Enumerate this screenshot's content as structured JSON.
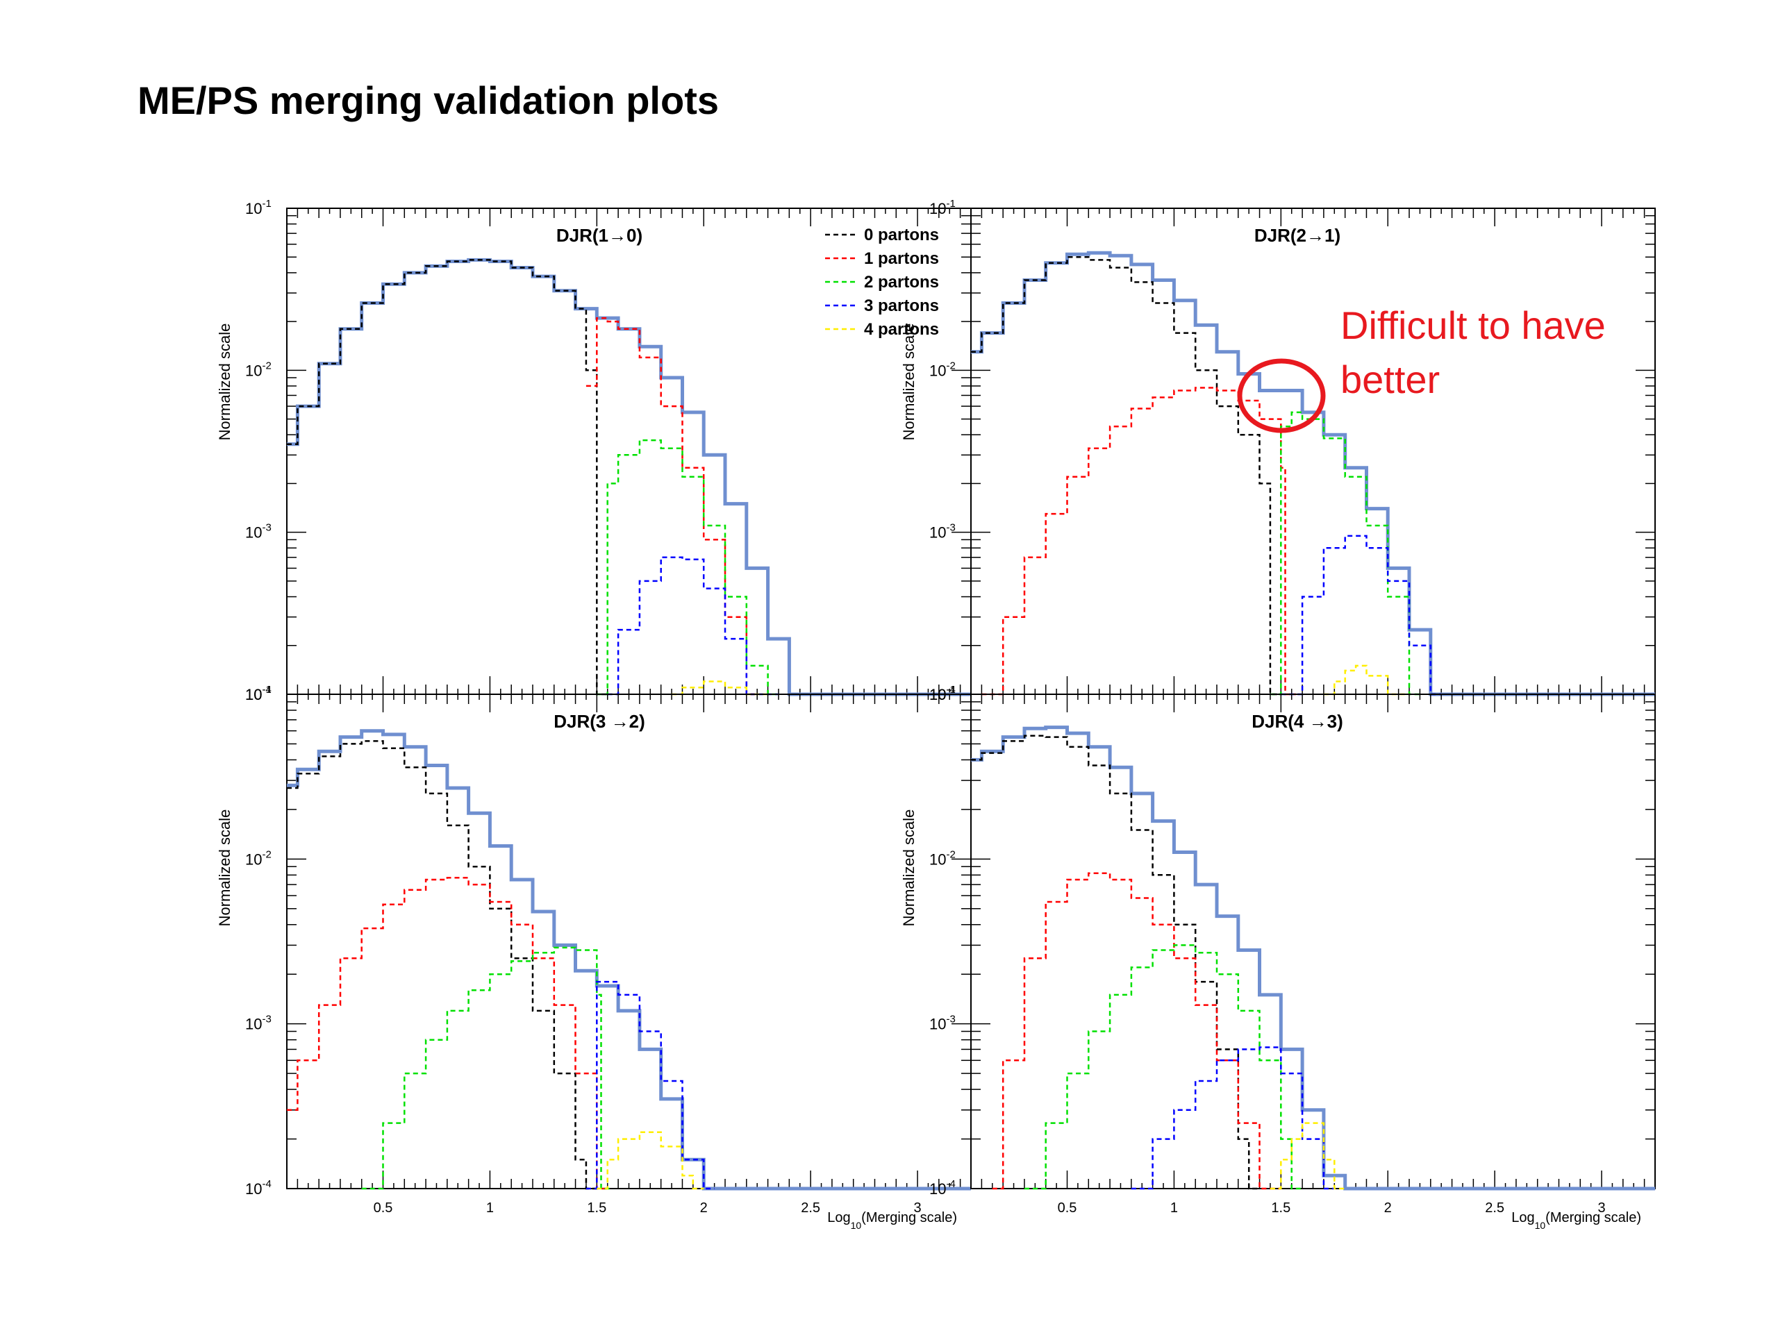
{
  "slide": {
    "title": "ME/PS merging validation plots"
  },
  "annotation": {
    "text": [
      "Difficult to have",
      "better"
    ],
    "color": "#e8191f"
  },
  "colors": {
    "total": "#6f8fd0",
    "0 partons": "#000000",
    "1 partons": "#ff0000",
    "2 partons": "#00e000",
    "3 partons": "#0000ff",
    "4 partons": "#ffee00"
  },
  "chart_data": [
    {
      "type": "line",
      "title": "DJR(1→0)",
      "ylabel": "Normalized scale",
      "xlabel": "",
      "yscale": "log",
      "ylim": [
        0.0001,
        0.1
      ],
      "xlim": [
        0.05,
        3.25
      ],
      "legend": [
        "0 partons",
        "1 partons",
        "2 partons",
        "3 partons",
        "4 partons"
      ],
      "legend_position": "top-right",
      "x_ticks": [
        "0.5",
        "1",
        "1.5",
        "2",
        "2.5",
        "3"
      ],
      "y_ticks": [
        "10^-4",
        "10^-3",
        "10^-2",
        "10^-1"
      ],
      "series": [
        {
          "name": "total",
          "x": [
            0.05,
            0.1,
            0.2,
            0.3,
            0.4,
            0.5,
            0.6,
            0.7,
            0.8,
            0.9,
            1.0,
            1.1,
            1.2,
            1.3,
            1.4,
            1.5,
            1.6,
            1.7,
            1.8,
            1.9,
            2.0,
            2.1,
            2.2,
            2.3,
            2.4,
            2.5,
            3.2
          ],
          "y": [
            0.0035,
            0.006,
            0.011,
            0.018,
            0.026,
            0.034,
            0.04,
            0.044,
            0.047,
            0.048,
            0.047,
            0.043,
            0.038,
            0.031,
            0.024,
            0.021,
            0.018,
            0.014,
            0.009,
            0.0055,
            0.003,
            0.0015,
            0.0006,
            0.00022,
            0.0001,
            0.0001,
            0.0001
          ]
        },
        {
          "name": "0 partons",
          "x": [
            0.05,
            0.1,
            0.2,
            0.3,
            0.4,
            0.5,
            0.6,
            0.7,
            0.8,
            0.9,
            1.0,
            1.1,
            1.2,
            1.3,
            1.4,
            1.45,
            1.5
          ],
          "y": [
            0.0035,
            0.006,
            0.011,
            0.018,
            0.026,
            0.034,
            0.04,
            0.044,
            0.047,
            0.048,
            0.047,
            0.043,
            0.038,
            0.031,
            0.024,
            0.01,
            0.0001
          ]
        },
        {
          "name": "1 partons",
          "x": [
            1.45,
            1.5,
            1.55,
            1.6,
            1.7,
            1.8,
            1.9,
            2.0,
            2.1,
            2.2
          ],
          "y": [
            0.008,
            0.021,
            0.02,
            0.018,
            0.012,
            0.006,
            0.0025,
            0.0009,
            0.0003,
            0.0001
          ]
        },
        {
          "name": "2 partons",
          "x": [
            1.5,
            1.55,
            1.6,
            1.7,
            1.8,
            1.9,
            2.0,
            2.1,
            2.2,
            2.3
          ],
          "y": [
            0.0001,
            0.002,
            0.003,
            0.0037,
            0.0033,
            0.0022,
            0.0011,
            0.0004,
            0.00015,
            0.0001
          ]
        },
        {
          "name": "3 partons",
          "x": [
            1.55,
            1.6,
            1.7,
            1.8,
            1.9,
            2.0,
            2.1,
            2.2,
            2.3
          ],
          "y": [
            0.0001,
            0.00025,
            0.0005,
            0.0007,
            0.00068,
            0.00045,
            0.00022,
            0.0001,
            0.0001
          ]
        },
        {
          "name": "4 partons",
          "x": [
            1.85,
            1.9,
            2.0,
            2.1,
            2.2,
            2.25
          ],
          "y": [
            0.0001,
            0.00011,
            0.00012,
            0.00011,
            0.0001,
            0.0001
          ]
        }
      ]
    },
    {
      "type": "line",
      "title": "DJR(2→1)",
      "ylabel": "Normalized scale",
      "xlabel": "",
      "yscale": "log",
      "ylim": [
        0.0001,
        0.1
      ],
      "xlim": [
        0.05,
        3.25
      ],
      "x_ticks": [
        "0.5",
        "1",
        "1.5",
        "2",
        "2.5",
        "3"
      ],
      "y_ticks": [
        "10^-4",
        "10^-3",
        "10^-2",
        "10^-1"
      ],
      "series": [
        {
          "name": "total",
          "x": [
            0.05,
            0.1,
            0.2,
            0.3,
            0.4,
            0.5,
            0.6,
            0.7,
            0.8,
            0.9,
            1.0,
            1.1,
            1.2,
            1.3,
            1.4,
            1.5,
            1.6,
            1.7,
            1.8,
            1.9,
            2.0,
            2.1,
            2.2,
            2.3,
            3.2
          ],
          "y": [
            0.013,
            0.017,
            0.026,
            0.036,
            0.046,
            0.052,
            0.053,
            0.051,
            0.045,
            0.036,
            0.027,
            0.019,
            0.013,
            0.0095,
            0.0075,
            0.0075,
            0.0055,
            0.004,
            0.0025,
            0.0014,
            0.0006,
            0.00025,
            0.0001,
            0.0001,
            0.0001
          ]
        },
        {
          "name": "0 partons",
          "x": [
            0.05,
            0.1,
            0.2,
            0.3,
            0.4,
            0.5,
            0.6,
            0.7,
            0.8,
            0.9,
            1.0,
            1.1,
            1.2,
            1.3,
            1.4,
            1.45
          ],
          "y": [
            0.013,
            0.017,
            0.026,
            0.036,
            0.046,
            0.05,
            0.048,
            0.043,
            0.035,
            0.026,
            0.017,
            0.01,
            0.006,
            0.004,
            0.002,
            0.0001
          ]
        },
        {
          "name": "1 partons",
          "x": [
            0.1,
            0.2,
            0.3,
            0.4,
            0.5,
            0.6,
            0.7,
            0.8,
            0.9,
            1.0,
            1.1,
            1.2,
            1.3,
            1.4,
            1.5,
            1.52
          ],
          "y": [
            0.0001,
            0.0003,
            0.0007,
            0.0013,
            0.0022,
            0.0033,
            0.0045,
            0.0058,
            0.0068,
            0.0075,
            0.0078,
            0.0075,
            0.0065,
            0.005,
            0.0025,
            0.0001
          ]
        },
        {
          "name": "2 partons",
          "x": [
            1.45,
            1.5,
            1.55,
            1.6,
            1.7,
            1.8,
            1.9,
            2.0,
            2.1
          ],
          "y": [
            0.0001,
            0.0045,
            0.0055,
            0.005,
            0.0038,
            0.0022,
            0.0011,
            0.0004,
            0.0001
          ]
        },
        {
          "name": "3 partons",
          "x": [
            1.5,
            1.6,
            1.7,
            1.8,
            1.9,
            2.0,
            2.1,
            2.2
          ],
          "y": [
            0.0001,
            0.0004,
            0.0008,
            0.00095,
            0.0008,
            0.0005,
            0.0002,
            0.0001
          ]
        },
        {
          "name": "4 partons",
          "x": [
            1.7,
            1.75,
            1.8,
            1.85,
            1.9,
            2.0,
            2.05
          ],
          "y": [
            0.0001,
            0.00012,
            0.00014,
            0.00015,
            0.00013,
            0.0001,
            0.0001
          ]
        }
      ]
    },
    {
      "type": "line",
      "title": "DJR(3 →2)",
      "ylabel": "Normalized scale",
      "xlabel": "Log10(Merging scale)",
      "yscale": "log",
      "ylim": [
        0.0001,
        0.1
      ],
      "xlim": [
        0.05,
        3.25
      ],
      "x_ticks": [
        "0.5",
        "1",
        "1.5",
        "2",
        "2.5",
        "3"
      ],
      "y_ticks": [
        "10^-4",
        "10^-3",
        "10^-2",
        "10^-1"
      ],
      "series": [
        {
          "name": "total",
          "x": [
            0.05,
            0.1,
            0.2,
            0.3,
            0.4,
            0.5,
            0.6,
            0.7,
            0.8,
            0.9,
            1.0,
            1.1,
            1.2,
            1.3,
            1.4,
            1.5,
            1.6,
            1.7,
            1.8,
            1.9,
            2.0,
            3.2
          ],
          "y": [
            0.028,
            0.035,
            0.045,
            0.055,
            0.06,
            0.057,
            0.048,
            0.037,
            0.027,
            0.019,
            0.012,
            0.0075,
            0.0048,
            0.003,
            0.0021,
            0.0017,
            0.0012,
            0.0007,
            0.00035,
            0.00015,
            0.0001,
            0.0001
          ]
        },
        {
          "name": "0 partons",
          "x": [
            0.05,
            0.1,
            0.2,
            0.3,
            0.4,
            0.5,
            0.6,
            0.7,
            0.8,
            0.9,
            1.0,
            1.1,
            1.2,
            1.3,
            1.4,
            1.45
          ],
          "y": [
            0.027,
            0.033,
            0.042,
            0.05,
            0.052,
            0.047,
            0.036,
            0.025,
            0.016,
            0.009,
            0.005,
            0.0025,
            0.0012,
            0.0005,
            0.00015,
            0.0001
          ]
        },
        {
          "name": "1 partons",
          "x": [
            0.05,
            0.1,
            0.2,
            0.3,
            0.4,
            0.5,
            0.6,
            0.7,
            0.8,
            0.9,
            1.0,
            1.1,
            1.2,
            1.3,
            1.4,
            1.5
          ],
          "y": [
            0.0003,
            0.0006,
            0.0013,
            0.0025,
            0.0038,
            0.0053,
            0.0065,
            0.0075,
            0.0077,
            0.007,
            0.0055,
            0.004,
            0.0025,
            0.0013,
            0.0005,
            0.0001
          ]
        },
        {
          "name": "2 partons",
          "x": [
            0.4,
            0.5,
            0.6,
            0.7,
            0.8,
            0.9,
            1.0,
            1.1,
            1.2,
            1.3,
            1.4,
            1.5,
            1.52
          ],
          "y": [
            0.0001,
            0.00025,
            0.0005,
            0.0008,
            0.0012,
            0.0016,
            0.002,
            0.0024,
            0.0027,
            0.0029,
            0.0028,
            0.0015,
            0.0001
          ]
        },
        {
          "name": "3 partons",
          "x": [
            1.45,
            1.5,
            1.6,
            1.7,
            1.8,
            1.9,
            2.0
          ],
          "y": [
            0.0001,
            0.0018,
            0.0015,
            0.0009,
            0.00045,
            0.00015,
            0.0001
          ]
        },
        {
          "name": "4 partons",
          "x": [
            1.5,
            1.55,
            1.6,
            1.7,
            1.8,
            1.9,
            1.95
          ],
          "y": [
            0.0001,
            0.00015,
            0.0002,
            0.00022,
            0.00018,
            0.00012,
            0.0001
          ]
        }
      ]
    },
    {
      "type": "line",
      "title": "DJR(4 →3)",
      "ylabel": "Normalized scale",
      "xlabel": "Log10(Merging scale)",
      "yscale": "log",
      "ylim": [
        0.0001,
        0.1
      ],
      "xlim": [
        0.05,
        3.25
      ],
      "x_ticks": [
        "0.5",
        "1",
        "1.5",
        "2",
        "2.5",
        "3"
      ],
      "y_ticks": [
        "10^-4",
        "10^-3",
        "10^-2",
        "10^-1"
      ],
      "series": [
        {
          "name": "total",
          "x": [
            0.05,
            0.1,
            0.2,
            0.3,
            0.4,
            0.5,
            0.6,
            0.7,
            0.8,
            0.9,
            1.0,
            1.1,
            1.2,
            1.3,
            1.4,
            1.5,
            1.6,
            1.7,
            1.8,
            3.2
          ],
          "y": [
            0.04,
            0.045,
            0.055,
            0.062,
            0.063,
            0.058,
            0.048,
            0.036,
            0.025,
            0.017,
            0.011,
            0.007,
            0.0045,
            0.0028,
            0.0015,
            0.0007,
            0.0003,
            0.00012,
            0.0001,
            0.0001
          ]
        },
        {
          "name": "0 partons",
          "x": [
            0.05,
            0.1,
            0.2,
            0.3,
            0.4,
            0.5,
            0.6,
            0.7,
            0.8,
            0.9,
            1.0,
            1.1,
            1.2,
            1.3,
            1.35
          ],
          "y": [
            0.04,
            0.044,
            0.052,
            0.056,
            0.055,
            0.048,
            0.037,
            0.025,
            0.015,
            0.008,
            0.004,
            0.0018,
            0.0007,
            0.0002,
            0.0001
          ]
        },
        {
          "name": "1 partons",
          "x": [
            0.15,
            0.2,
            0.3,
            0.4,
            0.5,
            0.6,
            0.7,
            0.8,
            0.9,
            1.0,
            1.1,
            1.2,
            1.3,
            1.4,
            1.45
          ],
          "y": [
            0.0001,
            0.0006,
            0.0025,
            0.0055,
            0.0075,
            0.0082,
            0.0075,
            0.0058,
            0.004,
            0.0025,
            0.0013,
            0.0006,
            0.00025,
            0.0001,
            0.0001
          ]
        },
        {
          "name": "2 partons",
          "x": [
            0.3,
            0.4,
            0.5,
            0.6,
            0.7,
            0.8,
            0.9,
            1.0,
            1.1,
            1.2,
            1.3,
            1.4,
            1.5,
            1.55
          ],
          "y": [
            0.0001,
            0.00025,
            0.0005,
            0.0009,
            0.0015,
            0.0022,
            0.0028,
            0.003,
            0.0027,
            0.002,
            0.0012,
            0.0006,
            0.0002,
            0.0001
          ]
        },
        {
          "name": "3 partons",
          "x": [
            0.8,
            0.9,
            1.0,
            1.1,
            1.2,
            1.3,
            1.4,
            1.5,
            1.6,
            1.7
          ],
          "y": [
            0.0001,
            0.0002,
            0.0003,
            0.00045,
            0.0006,
            0.0007,
            0.00072,
            0.0005,
            0.0002,
            0.0001
          ]
        },
        {
          "name": "4 partons",
          "x": [
            1.45,
            1.5,
            1.55,
            1.6,
            1.7,
            1.75
          ],
          "y": [
            0.0001,
            0.00015,
            0.0002,
            0.00025,
            0.00015,
            0.0001
          ]
        }
      ]
    }
  ]
}
